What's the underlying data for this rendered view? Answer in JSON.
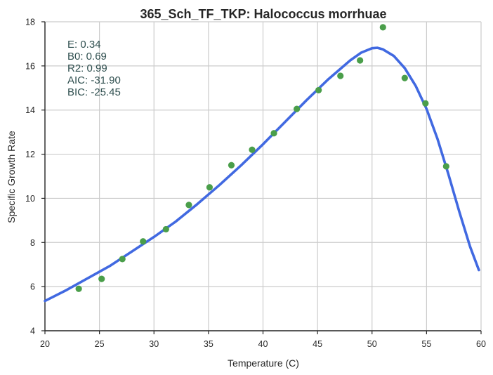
{
  "chart_data": {
    "type": "scatter",
    "title": "365_Sch_TF_TKP: Halococcus morrhuae",
    "xlabel": "Temperature (C)",
    "ylabel": "Specific Growth Rate",
    "xlim": [
      20,
      60
    ],
    "ylim": [
      4,
      18
    ],
    "xticks": [
      "20",
      "25",
      "30",
      "35",
      "40",
      "45",
      "50",
      "55",
      "60"
    ],
    "yticks": [
      "4",
      "6",
      "8",
      "10",
      "12",
      "14",
      "16",
      "18"
    ],
    "grid": true,
    "stats": [
      "E:  0.34",
      "B0:  0.69",
      "R2:  0.99",
      "AIC: -31.90",
      "BIC: -25.45"
    ],
    "series": [
      {
        "kind": "points",
        "color": "#4a9e4a",
        "x": [
          23.1,
          25.2,
          27.1,
          29.0,
          31.1,
          33.2,
          35.1,
          37.1,
          39.0,
          41.0,
          43.1,
          45.1,
          47.1,
          48.9,
          51.0,
          53.0,
          54.9,
          56.8
        ],
        "y": [
          5.9,
          6.35,
          7.25,
          8.05,
          8.6,
          9.7,
          10.5,
          11.5,
          12.2,
          12.95,
          14.05,
          14.9,
          15.55,
          16.25,
          17.75,
          15.45,
          14.3,
          11.45
        ]
      },
      {
        "kind": "curve",
        "color": "#4169e1",
        "x": [
          20,
          22,
          24,
          26,
          28,
          30,
          32,
          34,
          36,
          38,
          40,
          42,
          44,
          46,
          48,
          49,
          50,
          50.5,
          51,
          52,
          53,
          54,
          55,
          56,
          57,
          58,
          59,
          59.8
        ],
        "y": [
          5.35,
          5.85,
          6.4,
          6.95,
          7.6,
          8.25,
          8.95,
          9.75,
          10.6,
          11.5,
          12.45,
          13.45,
          14.45,
          15.4,
          16.25,
          16.6,
          16.8,
          16.82,
          16.75,
          16.45,
          15.9,
          15.1,
          14.05,
          12.7,
          11.1,
          9.4,
          7.8,
          6.75
        ]
      }
    ]
  }
}
